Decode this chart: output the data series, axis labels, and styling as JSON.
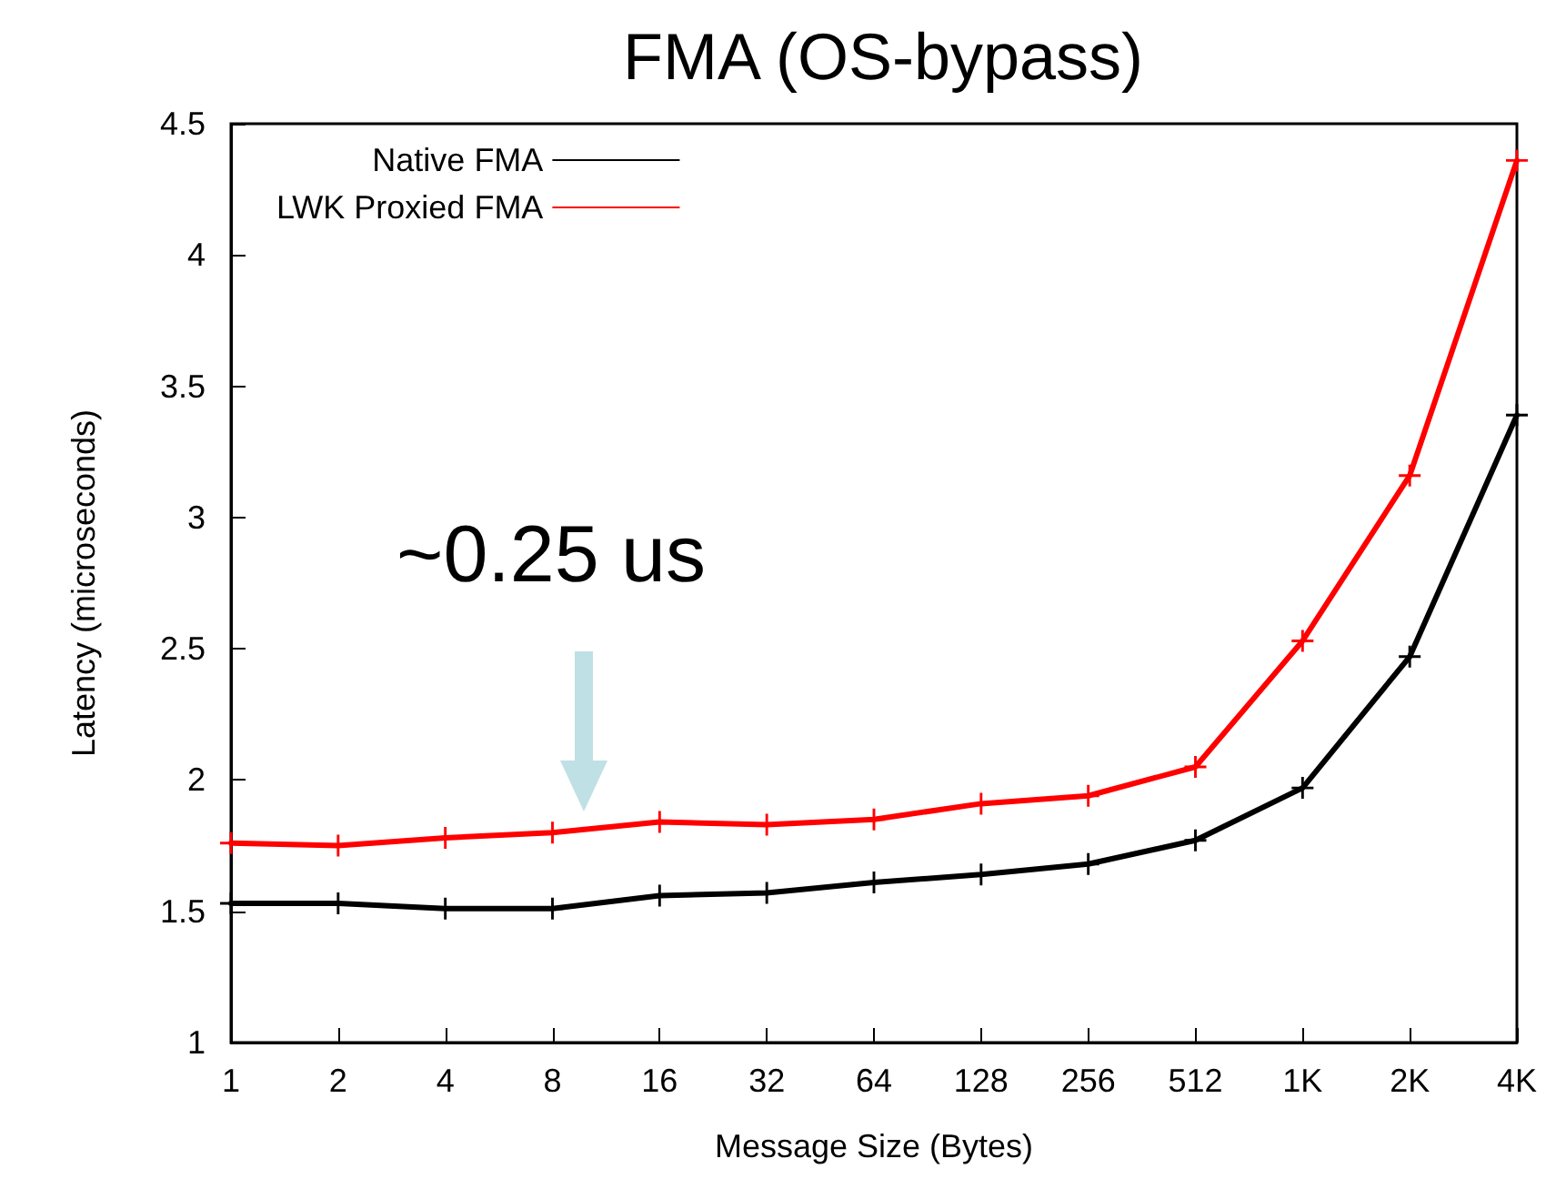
{
  "chart_data": {
    "type": "line",
    "title": "FMA (OS-bypass)",
    "xlabel": "Message Size (Bytes)",
    "ylabel": "Latency (microseconds)",
    "categories": [
      "1",
      "2",
      "4",
      "8",
      "16",
      "32",
      "64",
      "128",
      "256",
      "512",
      "1K",
      "2K",
      "4K"
    ],
    "series": [
      {
        "name": "Native FMA",
        "color": "#000000",
        "values": [
          1.53,
          1.53,
          1.51,
          1.51,
          1.56,
          1.57,
          1.61,
          1.64,
          1.68,
          1.77,
          1.97,
          2.47,
          3.39
        ]
      },
      {
        "name": "LWK Proxied FMA",
        "color": "#ff0000",
        "values": [
          1.76,
          1.75,
          1.78,
          1.8,
          1.84,
          1.83,
          1.85,
          1.91,
          1.94,
          2.05,
          2.53,
          3.16,
          4.36
        ]
      }
    ],
    "ylim": [
      1,
      4.5
    ],
    "yticks": [
      1,
      1.5,
      2,
      2.5,
      3,
      3.5,
      4,
      4.5
    ],
    "annotations": [
      "~0.25 us"
    ],
    "legend": "top left",
    "grid": false,
    "marker": "cross",
    "line_style": "solid"
  }
}
